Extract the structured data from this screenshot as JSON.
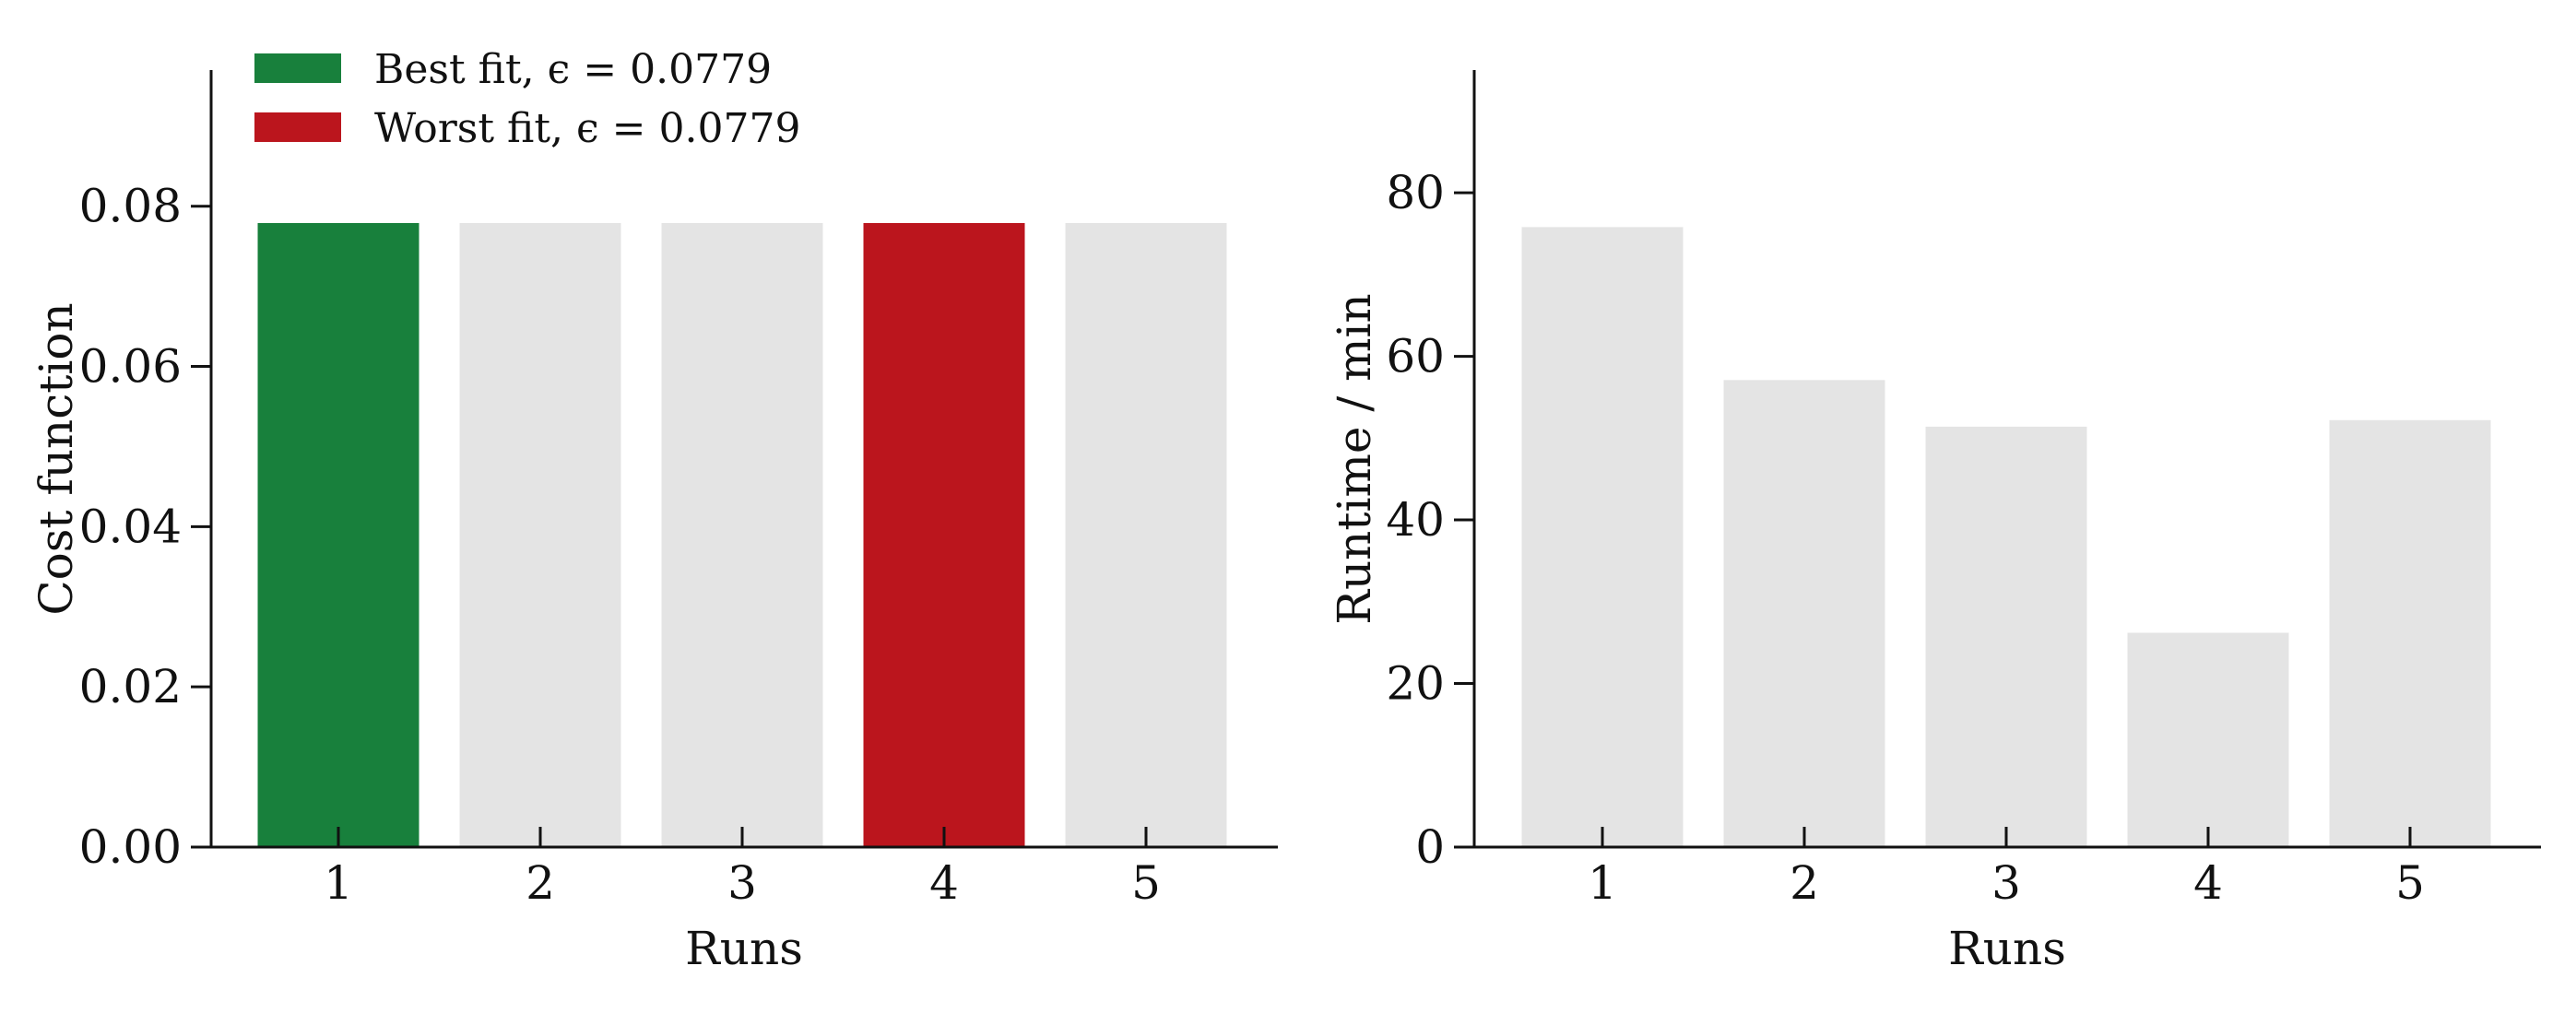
{
  "colors": {
    "best": "#18803c",
    "worst": "#bb151d",
    "neutral": "#e4e4e4",
    "axis": "#111111"
  },
  "chart_data": [
    {
      "type": "bar",
      "categories": [
        "1",
        "2",
        "3",
        "4",
        "5"
      ],
      "values": [
        0.0779,
        0.0779,
        0.0779,
        0.0779,
        0.0779
      ],
      "bar_colors": [
        "best",
        "neutral",
        "neutral",
        "worst",
        "neutral"
      ],
      "xlabel": "Runs",
      "ylabel": "Cost function",
      "ylim": [
        0,
        0.097
      ],
      "yticks": [
        0,
        0.02,
        0.04,
        0.06,
        0.08
      ],
      "ytick_labels": [
        "0.00",
        "0.02",
        "0.04",
        "0.06",
        "0.08"
      ],
      "grid": false,
      "legend": {
        "placement": "top-left",
        "entries": [
          {
            "label": "Best fit, ϵ = 0.0779",
            "color": "best"
          },
          {
            "label": "Worst fit, ϵ = 0.0779",
            "color": "worst"
          }
        ]
      }
    },
    {
      "type": "bar",
      "categories": [
        "1",
        "2",
        "3",
        "4",
        "5"
      ],
      "values": [
        75.8,
        57.1,
        51.4,
        26.2,
        52.2
      ],
      "bar_colors": [
        "neutral",
        "neutral",
        "neutral",
        "neutral",
        "neutral"
      ],
      "xlabel": "Runs",
      "ylabel": "Runtime / min",
      "ylim": [
        0,
        95
      ],
      "yticks": [
        0,
        20,
        40,
        60,
        80
      ],
      "ytick_labels": [
        "0",
        "20",
        "40",
        "60",
        "80"
      ],
      "grid": false
    }
  ]
}
